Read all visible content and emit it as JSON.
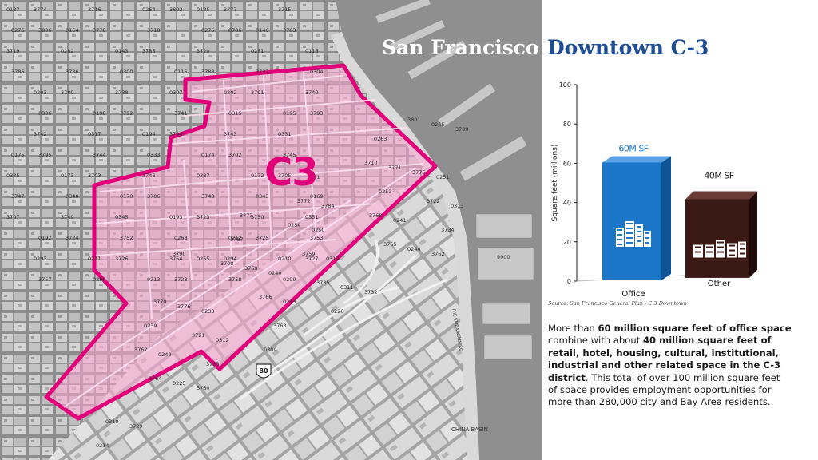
{
  "title": {
    "left": "San Francisco",
    "right": "Downtown C-3"
  },
  "map": {
    "district_label": "C3",
    "highway_label": "80",
    "china_basin_label": "CHINA BASIN",
    "embarcadero_label": "THE EMBARCADERO",
    "pier_label": "9900",
    "block_labels": [
      "0187",
      "0185",
      "0164",
      "0146",
      "0143",
      "0116",
      "0115",
      "0203",
      "0202",
      "0198",
      "0195",
      "0194",
      "0175",
      "0174",
      "0173",
      "0172",
      "0170",
      "0169",
      "0193",
      "0192",
      "0212",
      "0211",
      "0210",
      "0213",
      "0214",
      "0226",
      "0225",
      "0244",
      "0243",
      "0242",
      "0241",
      "0240",
      "0239",
      "0253",
      "0254",
      "0255",
      "0265",
      "0263",
      "0264",
      "0276",
      "0275",
      "0282",
      "0281",
      "0300",
      "0304",
      "0307",
      "0306",
      "0315",
      "0317",
      "0331",
      "0333",
      "0335",
      "0337",
      "0340",
      "0343",
      "0345",
      "0351",
      "0268",
      "0293",
      "0294",
      "0296",
      "0299",
      "0309",
      "0310",
      "0311",
      "0312",
      "0313",
      "0314",
      "0233",
      "0251",
      "0250",
      "3708",
      "3709",
      "3710",
      "3711",
      "3716",
      "3715",
      "3718",
      "3719",
      "3720",
      "3736",
      "3737",
      "3738",
      "3740",
      "3741",
      "3742",
      "3743",
      "3744",
      "3745",
      "3746",
      "3747",
      "3748",
      "3749",
      "3750",
      "3752",
      "3753",
      "3754",
      "3757",
      "3758",
      "3760",
      "3762",
      "3763",
      "3764",
      "3765",
      "3766",
      "3767",
      "3768",
      "3769",
      "3770",
      "3771",
      "3772",
      "3773",
      "3774",
      "3777",
      "3778",
      "3783",
      "3785",
      "3786",
      "3788",
      "3789",
      "3791",
      "3792",
      "3793",
      "3794",
      "3795",
      "3702",
      "3703",
      "3705",
      "3706",
      "3707",
      "3723",
      "3724",
      "3725",
      "3726",
      "3727",
      "3728",
      "3729",
      "3732",
      "3733",
      "3734",
      "3735",
      "3721",
      "3722",
      "3759",
      "3776",
      "3775",
      "3784",
      "3787",
      "3790",
      "3801",
      "3802",
      "3806",
      "8706"
    ]
  },
  "chart_data": {
    "type": "bar",
    "categories": [
      "Office",
      "Other"
    ],
    "values": [
      60,
      40
    ],
    "data_labels": [
      "60M SF",
      "40M SF"
    ],
    "ylabel": "Square feet (millions)",
    "ylim": [
      0,
      100
    ],
    "yticks": [
      0,
      20,
      40,
      60,
      80,
      100
    ],
    "colors": [
      "#1b76c9",
      "#3b1a16"
    ],
    "style": "3d-bars",
    "icons": [
      "office-buildings-icon",
      "other-buildings-icon"
    ]
  },
  "source": "Source: San Francisco General Plan - C-3 Downtown",
  "description": {
    "p1": "More than ",
    "b1": "60 million square feet of office space",
    "p2": " combine with about ",
    "b2": "40 million square feet of retail, hotel, housing, cultural, institutional, industrial and other related space in the C-3 district",
    "p3": ". This total of over 100 million square feet of space provides employment opportunities for more than 280,000 city and Bay Area residents."
  }
}
